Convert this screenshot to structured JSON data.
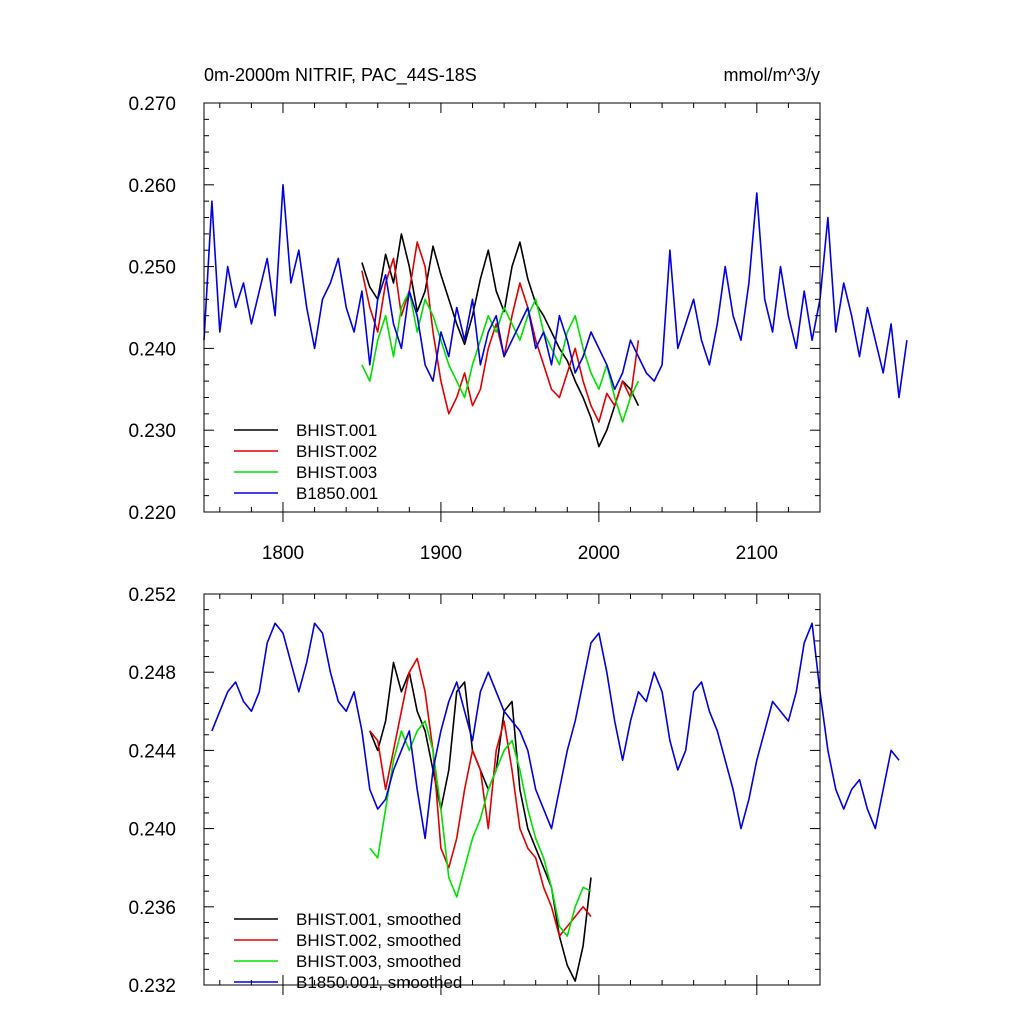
{
  "title_left": "0m-2000m NITRIF, PAC_44S-18S",
  "title_right": "mmol/m^3/y",
  "colors": {
    "BHIST.001": "#000000",
    "BHIST.002": "#e00000",
    "BHIST.003": "#00e000",
    "B1850.001": "#0000e0"
  },
  "chart_data": [
    {
      "type": "line",
      "xlim": [
        1750,
        2140
      ],
      "ylim": [
        0.22,
        0.27
      ],
      "x_ticks": [
        1800,
        1900,
        2000,
        2100
      ],
      "x_tick_labels": [
        "1800",
        "1900",
        "2000",
        "2100"
      ],
      "y_ticks": [
        0.22,
        0.23,
        0.24,
        0.25,
        0.26,
        0.27
      ],
      "y_tick_labels": [
        "0.220",
        "0.230",
        "0.240",
        "0.250",
        "0.260",
        "0.270"
      ],
      "legend_position": "bottom-left",
      "series": [
        {
          "name": "BHIST.001",
          "color": "#000000",
          "x_start": 1850,
          "x_step": 5,
          "values": [
            0.2505,
            0.2475,
            0.246,
            0.2515,
            0.248,
            0.254,
            0.25,
            0.2445,
            0.247,
            0.2525,
            0.249,
            0.246,
            0.243,
            0.2405,
            0.244,
            0.2485,
            0.252,
            0.247,
            0.2445,
            0.25,
            0.253,
            0.2485,
            0.2455,
            0.244,
            0.242,
            0.24,
            0.2385,
            0.236,
            0.234,
            0.2315,
            0.228,
            0.23,
            0.233,
            0.236,
            0.235,
            0.233
          ]
        },
        {
          "name": "BHIST.002",
          "color": "#e00000",
          "x_start": 1850,
          "x_step": 5,
          "values": [
            0.2495,
            0.245,
            0.242,
            0.248,
            0.251,
            0.244,
            0.247,
            0.253,
            0.25,
            0.242,
            0.236,
            0.232,
            0.234,
            0.237,
            0.233,
            0.235,
            0.24,
            0.243,
            0.239,
            0.244,
            0.248,
            0.245,
            0.241,
            0.238,
            0.235,
            0.234,
            0.237,
            0.24,
            0.236,
            0.233,
            0.231,
            0.2345,
            0.233,
            0.236,
            0.234,
            0.241
          ]
        },
        {
          "name": "BHIST.003",
          "color": "#00e000",
          "x_start": 1850,
          "x_step": 5,
          "values": [
            0.238,
            0.236,
            0.241,
            0.244,
            0.239,
            0.245,
            0.247,
            0.242,
            0.246,
            0.244,
            0.241,
            0.238,
            0.236,
            0.234,
            0.238,
            0.241,
            0.244,
            0.242,
            0.245,
            0.243,
            0.241,
            0.244,
            0.246,
            0.242,
            0.24,
            0.238,
            0.242,
            0.244,
            0.24,
            0.237,
            0.235,
            0.238,
            0.234,
            0.231,
            0.234,
            0.236
          ]
        },
        {
          "name": "B1850.001",
          "color": "#0000e0",
          "x_start": 1750,
          "x_step": 5,
          "values": [
            0.241,
            0.258,
            0.242,
            0.25,
            0.245,
            0.248,
            0.243,
            0.247,
            0.251,
            0.244,
            0.26,
            0.248,
            0.252,
            0.245,
            0.24,
            0.246,
            0.248,
            0.251,
            0.245,
            0.242,
            0.247,
            0.238,
            0.246,
            0.249,
            0.243,
            0.24,
            0.247,
            0.244,
            0.238,
            0.236,
            0.242,
            0.239,
            0.245,
            0.241,
            0.246,
            0.238,
            0.242,
            0.244,
            0.239,
            0.241,
            0.243,
            0.245,
            0.24,
            0.242,
            0.238,
            0.244,
            0.241,
            0.237,
            0.239,
            0.242,
            0.24,
            0.238,
            0.235,
            0.237,
            0.241,
            0.239,
            0.237,
            0.236,
            0.238,
            0.252,
            0.24,
            0.243,
            0.246,
            0.241,
            0.238,
            0.243,
            0.25,
            0.244,
            0.241,
            0.248,
            0.259,
            0.246,
            0.242,
            0.25,
            0.244,
            0.24,
            0.247,
            0.241,
            0.246,
            0.256,
            0.242,
            0.248,
            0.244,
            0.239,
            0.245,
            0.241,
            0.237,
            0.243,
            0.234,
            0.241
          ]
        }
      ]
    },
    {
      "type": "line",
      "xlim": [
        1750,
        2140
      ],
      "ylim": [
        0.232,
        0.252
      ],
      "x_ticks": [
        1800,
        1900,
        2000,
        2100
      ],
      "x_tick_labels": [],
      "y_ticks": [
        0.232,
        0.236,
        0.24,
        0.244,
        0.248,
        0.252
      ],
      "y_tick_labels": [
        "0.232",
        "0.236",
        "0.240",
        "0.244",
        "0.248",
        "0.252"
      ],
      "legend_position": "bottom-left",
      "series": [
        {
          "name": "BHIST.001, smoothed",
          "color": "#000000",
          "x_start": 1855,
          "x_step": 5,
          "values": [
            0.245,
            0.244,
            0.2455,
            0.2485,
            0.247,
            0.248,
            0.246,
            0.245,
            0.243,
            0.241,
            0.243,
            0.247,
            0.2475,
            0.244,
            0.243,
            0.242,
            0.243,
            0.246,
            0.2465,
            0.242,
            0.24,
            0.239,
            0.238,
            0.237,
            0.2345,
            0.233,
            0.2322,
            0.234,
            0.2375
          ]
        },
        {
          "name": "BHIST.002, smoothed",
          "color": "#e00000",
          "x_start": 1855,
          "x_step": 5,
          "values": [
            0.245,
            0.2445,
            0.242,
            0.244,
            0.246,
            0.248,
            0.2487,
            0.247,
            0.244,
            0.239,
            0.238,
            0.2395,
            0.242,
            0.244,
            0.243,
            0.24,
            0.244,
            0.2455,
            0.243,
            0.24,
            0.239,
            0.2385,
            0.237,
            0.236,
            0.2345,
            0.235,
            0.2355,
            0.236,
            0.2355
          ]
        },
        {
          "name": "BHIST.003, smoothed",
          "color": "#00e000",
          "x_start": 1855,
          "x_step": 5,
          "values": [
            0.239,
            0.2385,
            0.241,
            0.2435,
            0.245,
            0.244,
            0.245,
            0.2455,
            0.244,
            0.241,
            0.2375,
            0.2365,
            0.238,
            0.2395,
            0.2405,
            0.242,
            0.243,
            0.244,
            0.2445,
            0.243,
            0.241,
            0.2395,
            0.2385,
            0.237,
            0.235,
            0.2345,
            0.236,
            0.237,
            0.2368
          ]
        },
        {
          "name": "B1850.001, smoothed",
          "color": "#0000e0",
          "x_start": 1755,
          "x_step": 5,
          "values": [
            0.245,
            0.246,
            0.247,
            0.2475,
            0.2465,
            0.246,
            0.247,
            0.2495,
            0.2505,
            0.25,
            0.2485,
            0.247,
            0.2485,
            0.2505,
            0.25,
            0.248,
            0.2465,
            0.246,
            0.247,
            0.245,
            0.242,
            0.241,
            0.2415,
            0.243,
            0.244,
            0.245,
            0.242,
            0.2395,
            0.243,
            0.245,
            0.2465,
            0.2475,
            0.246,
            0.2445,
            0.247,
            0.248,
            0.247,
            0.246,
            0.2455,
            0.245,
            0.244,
            0.242,
            0.241,
            0.24,
            0.242,
            0.244,
            0.2455,
            0.2475,
            0.2495,
            0.25,
            0.248,
            0.2455,
            0.2435,
            0.2455,
            0.247,
            0.2465,
            0.248,
            0.247,
            0.2445,
            0.243,
            0.244,
            0.247,
            0.2475,
            0.246,
            0.245,
            0.2435,
            0.242,
            0.24,
            0.2415,
            0.2435,
            0.245,
            0.2465,
            0.246,
            0.2455,
            0.247,
            0.2495,
            0.2505,
            0.247,
            0.244,
            0.242,
            0.241,
            0.242,
            0.2425,
            0.241,
            0.24,
            0.242,
            0.244,
            0.2435
          ]
        }
      ]
    }
  ]
}
